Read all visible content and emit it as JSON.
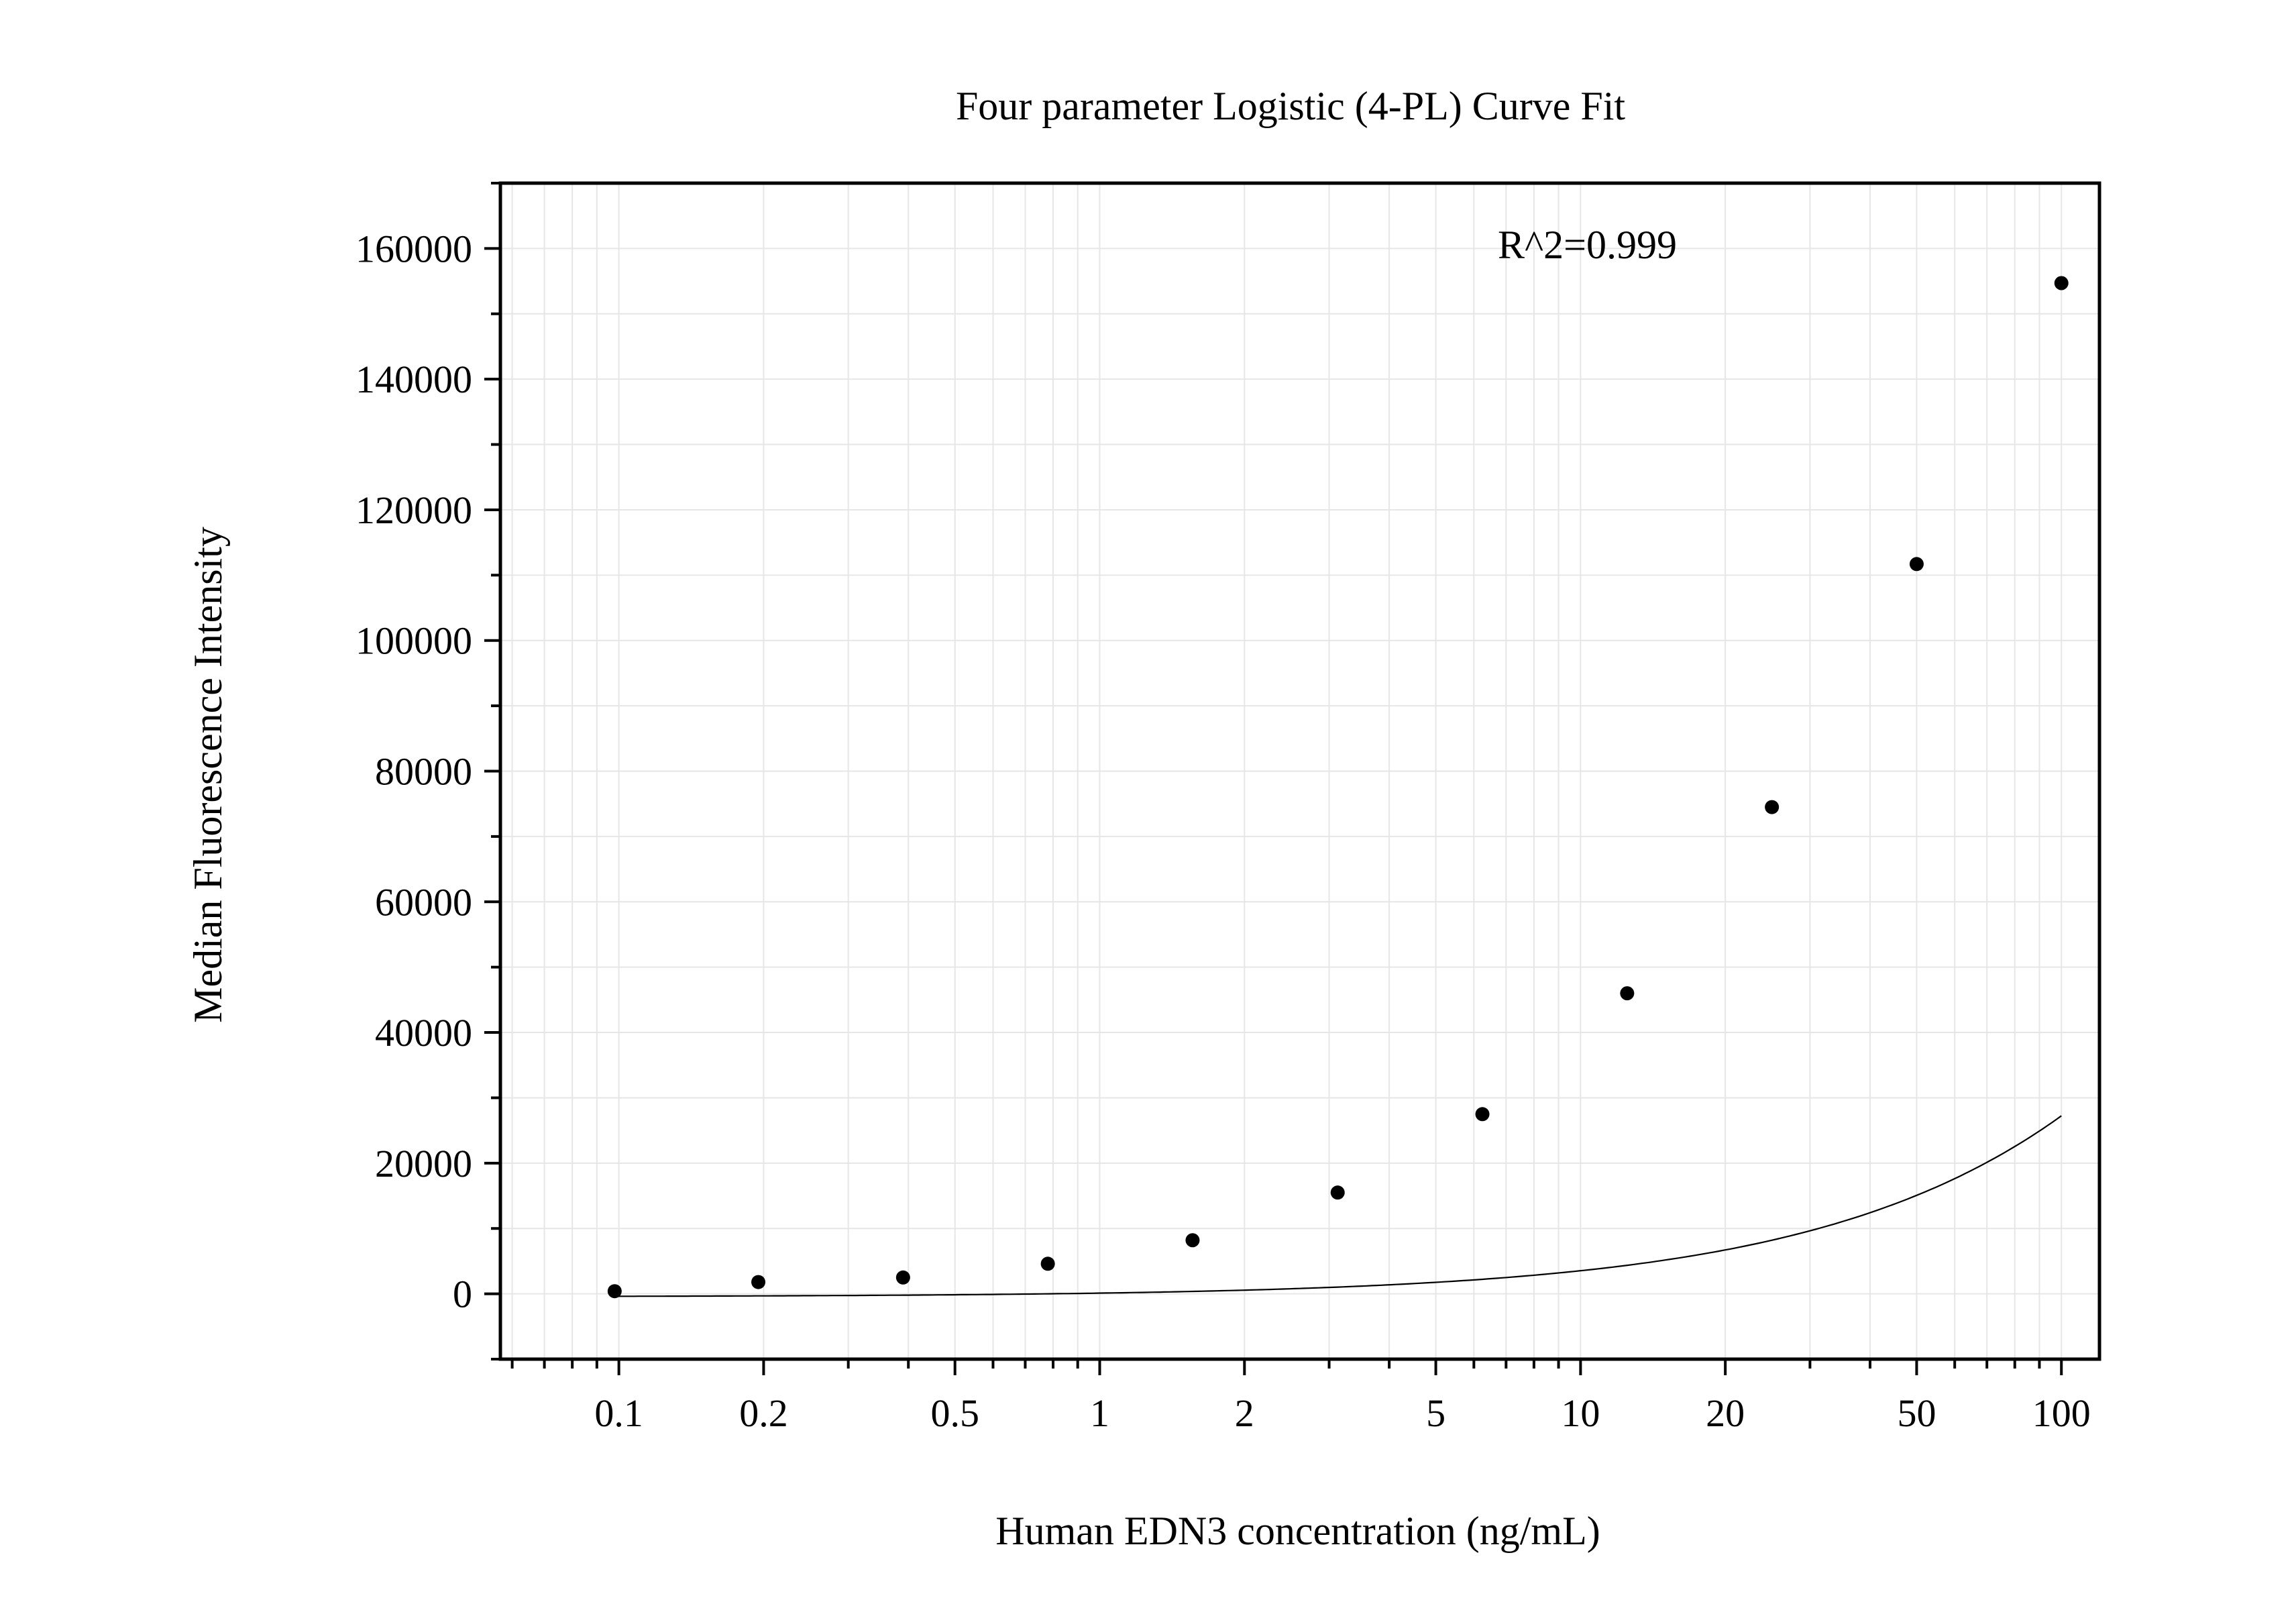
{
  "chart_data": {
    "type": "scatter",
    "title": "Four parameter Logistic (4-PL) Curve Fit",
    "xlabel": "Human EDN3 concentration (ng/mL)",
    "ylabel": "Median Fluorescence Intensity",
    "annotation": "R^2=0.999",
    "x_scale": "log",
    "xlim": [
      0.0567,
      120
    ],
    "ylim": [
      -10000,
      170000
    ],
    "x_ticks": [
      {
        "value": 0.1,
        "label": "0.1"
      },
      {
        "value": 0.2,
        "label": "0.2"
      },
      {
        "value": 0.5,
        "label": "0.5"
      },
      {
        "value": 1,
        "label": "1"
      },
      {
        "value": 2,
        "label": "2"
      },
      {
        "value": 5,
        "label": "5"
      },
      {
        "value": 10,
        "label": "10"
      },
      {
        "value": 20,
        "label": "20"
      },
      {
        "value": 50,
        "label": "50"
      },
      {
        "value": 100,
        "label": "100"
      }
    ],
    "y_ticks": [
      {
        "value": 0,
        "label": "0"
      },
      {
        "value": 20000,
        "label": "20000"
      },
      {
        "value": 40000,
        "label": "40000"
      },
      {
        "value": 60000,
        "label": "60000"
      },
      {
        "value": 80000,
        "label": "80000"
      },
      {
        "value": 100000,
        "label": "100000"
      },
      {
        "value": 120000,
        "label": "120000"
      },
      {
        "value": 140000,
        "label": "140000"
      },
      {
        "value": 160000,
        "label": "160000"
      }
    ],
    "grid": true,
    "series": [
      {
        "points": [
          {
            "x": 0.098,
            "y": 400
          },
          {
            "x": 0.195,
            "y": 1800
          },
          {
            "x": 0.39,
            "y": 2500
          },
          {
            "x": 0.78,
            "y": 4600
          },
          {
            "x": 1.56,
            "y": 8200
          },
          {
            "x": 3.125,
            "y": 15500
          },
          {
            "x": 6.25,
            "y": 27500
          },
          {
            "x": 12.5,
            "y": 46000
          },
          {
            "x": 25,
            "y": 74500
          },
          {
            "x": 50,
            "y": 111700
          },
          {
            "x": 100,
            "y": 154700
          }
        ]
      }
    ],
    "curve": {
      "model": "4PL",
      "A": -460,
      "D": 1200000,
      "C": 8200,
      "B": 0.85
    },
    "colors": {
      "points": "#000000",
      "curve": "#000000",
      "grid": "#e6e6e6",
      "axis": "#000000"
    }
  }
}
